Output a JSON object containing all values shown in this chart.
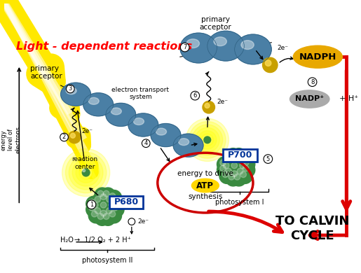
{
  "title": "Light - dependent reactions",
  "title_color": "#FF0000",
  "bg_color": "#FFFFFF",
  "labels": {
    "primary_acceptor_left": "primary\nacceptor",
    "primary_acceptor_top": "primary\nacceptor",
    "electron_transport": "electron transport\nsystem",
    "reaction_center": "reaction\ncenter",
    "energy_to_drive": "energy to drive",
    "ATP": "ATP",
    "synthesis": "synthesis",
    "P680": "P680",
    "P700": "P700",
    "photosystem_II": "photosystem II",
    "photosystem_I": "photosystem I",
    "NADPH": "NADPH",
    "NADP_plus": "NADP⁺",
    "H_plus": "+ H⁺",
    "H2O": "H₂O",
    "reaction_eq": "→  1/2 O₂ + 2 H⁺",
    "to_calvin": "TO CALVIN\nCYCLE",
    "energy_level": "energy\nlevel of\nelectrons",
    "electrons2a": "2e⁻",
    "electrons2b": "2e⁻",
    "electrons2c": "2e⁻",
    "electrons2d": "2e⁻"
  },
  "colors": {
    "blue_sphere": "#4a7fa5",
    "blue_sphere_dark": "#2d5f80",
    "green_cluster": "#3a8a40",
    "yellow_glow_outer": "#FFFF00",
    "yellow_sphere": "#d4a017",
    "red_circle": "#CC0000",
    "red_arrow": "#DD0000",
    "NADPH_yellow": "#e8a800",
    "NADP_gray": "#aaaaaa",
    "P680_box": "#003399",
    "P700_box": "#003399",
    "ATP_yellow": "#FFD700",
    "white": "#FFFFFF",
    "black": "#000000"
  }
}
